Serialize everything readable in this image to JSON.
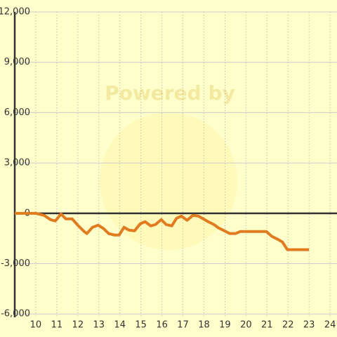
{
  "chart_data": {
    "type": "line",
    "watermark": "Powered by",
    "x": [
      9,
      10,
      10.4,
      10.7,
      10.93,
      11.2,
      11.43,
      11.73,
      12.03,
      12.3,
      12.43,
      12.7,
      12.97,
      13.23,
      13.47,
      13.73,
      13.97,
      14.2,
      14.43,
      14.7,
      14.97,
      15.2,
      15.47,
      15.7,
      15.97,
      16.2,
      16.47,
      16.7,
      16.93,
      17.2,
      17.47,
      17.73,
      17.97,
      18.2,
      18.47,
      18.7,
      18.97,
      19.23,
      19.5,
      19.73,
      20.23,
      20.73,
      20.97,
      21.23,
      21.5,
      21.73,
      21.97,
      22.47,
      23
    ],
    "series": [
      {
        "color": "#e07b20",
        "values": [
          0,
          0,
          -125,
          -375,
          -458,
          -42,
          -333,
          -333,
          -750,
          -1083,
          -1208,
          -833,
          -708,
          -917,
          -1208,
          -1292,
          -1292,
          -833,
          -1000,
          -1042,
          -625,
          -500,
          -750,
          -667,
          -375,
          -667,
          -750,
          -292,
          -167,
          -417,
          -125,
          -167,
          -333,
          -500,
          -667,
          -875,
          -1042,
          -1208,
          -1208,
          -1083,
          -1083,
          -1083,
          -1083,
          -1375,
          -1542,
          -1708,
          -2167,
          -2167,
          -2167
        ]
      }
    ],
    "xlim": [
      9,
      24.33
    ],
    "xticks": [
      10,
      11,
      12,
      13,
      14,
      15,
      16,
      17,
      18,
      19,
      20,
      21,
      22,
      23,
      24
    ],
    "ylim": [
      -6200,
      12000
    ],
    "yticks": [
      {
        "value": 12000,
        "label": "12,000"
      },
      {
        "value": 9000,
        "label": "9,000"
      },
      {
        "value": 6000,
        "label": "6,000"
      },
      {
        "value": 3000,
        "label": "3,000"
      },
      0,
      {
        "value": -3000,
        "label": "-3,000"
      },
      {
        "value": -6000,
        "label": "-6,000"
      }
    ],
    "grid": true
  }
}
